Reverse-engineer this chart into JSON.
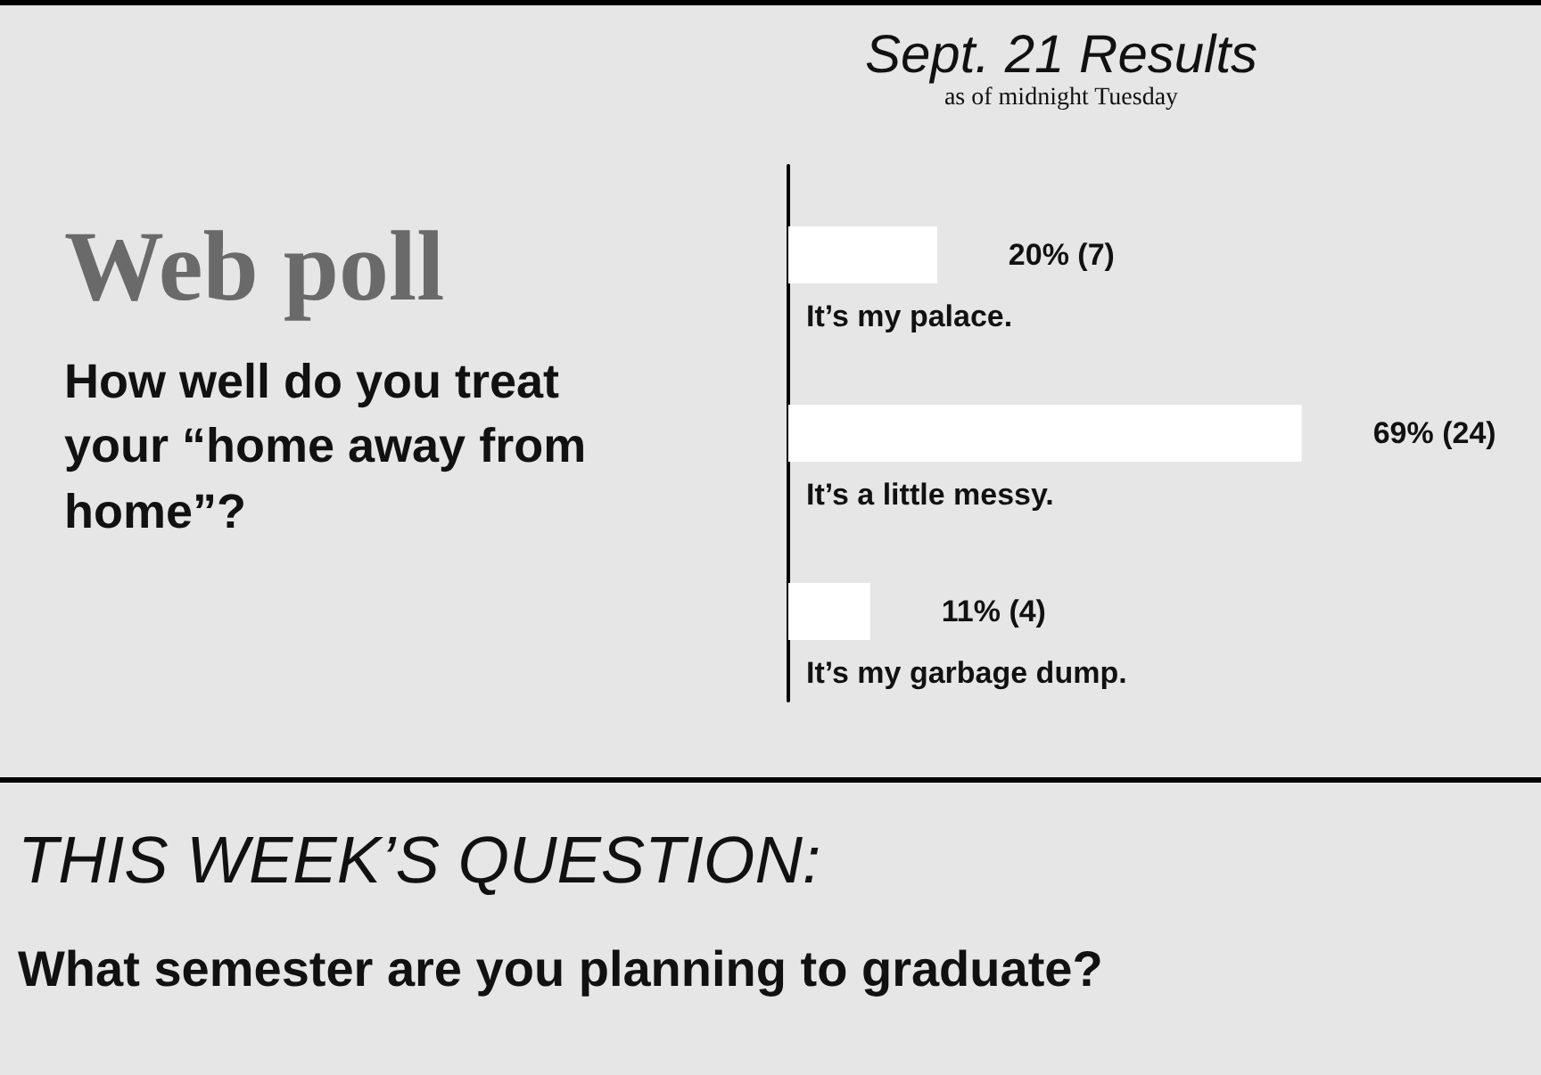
{
  "chart_data": {
    "type": "bar",
    "orientation": "horizontal",
    "title": "Sept. 21 Results",
    "subtitle": "as of midnight Tuesday",
    "categories": [
      "It’s my palace.",
      "It’s a little messy.",
      "It’s my garbage dump."
    ],
    "values": [
      20,
      69,
      11
    ],
    "color": "#ffffff",
    "value_labels": [
      "20% (7)",
      "69% (24)",
      "11% (4)"
    ],
    "annotations": [
      "Web poll",
      "How well do you treat your “home away from home”?",
      "THIS WEEK’S QUESTION:",
      "What semester are you planning to graduate?"
    ]
  }
}
